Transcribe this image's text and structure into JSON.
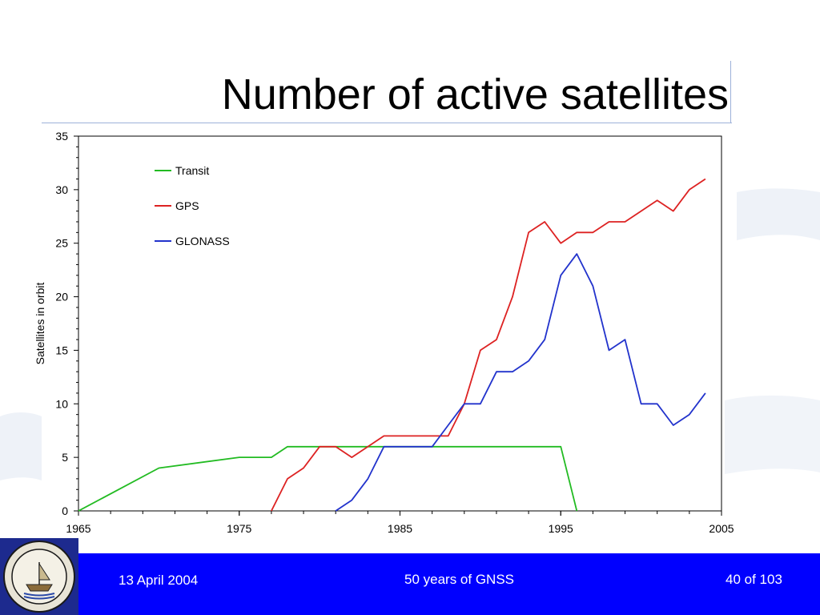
{
  "slide": {
    "title": "Number of active satellites"
  },
  "footer": {
    "date": "13 April 2004",
    "center": "50 years of GNSS",
    "page": "40 of 103"
  },
  "chart_data": {
    "type": "line",
    "title": "",
    "xlabel": "",
    "ylabel": "Satellites in orbit",
    "xlim": [
      1965,
      2005
    ],
    "ylim": [
      0,
      35
    ],
    "x_ticks": [
      1965,
      1975,
      1985,
      1995,
      2005
    ],
    "y_ticks": [
      0,
      5,
      10,
      15,
      20,
      25,
      30,
      35
    ],
    "grid": false,
    "legend_position": "top-left",
    "series": [
      {
        "name": "Transit",
        "color": "#22bb22",
        "points": [
          [
            1965,
            0
          ],
          [
            1970,
            4
          ],
          [
            1975,
            5
          ],
          [
            1977,
            5
          ],
          [
            1978,
            6
          ],
          [
            1995,
            6
          ],
          [
            1996,
            0
          ]
        ]
      },
      {
        "name": "GPS",
        "color": "#dd2222",
        "points": [
          [
            1977,
            0
          ],
          [
            1978,
            3
          ],
          [
            1979,
            4
          ],
          [
            1980,
            6
          ],
          [
            1981,
            6
          ],
          [
            1982,
            5
          ],
          [
            1983,
            6
          ],
          [
            1984,
            7
          ],
          [
            1988,
            7
          ],
          [
            1989,
            10
          ],
          [
            1990,
            15
          ],
          [
            1991,
            16
          ],
          [
            1992,
            20
          ],
          [
            1993,
            26
          ],
          [
            1994,
            27
          ],
          [
            1995,
            25
          ],
          [
            1996,
            26
          ],
          [
            1997,
            26
          ],
          [
            1998,
            27
          ],
          [
            1999,
            27
          ],
          [
            2000,
            28
          ],
          [
            2001,
            29
          ],
          [
            2002,
            28
          ],
          [
            2003,
            30
          ],
          [
            2004,
            31
          ]
        ]
      },
      {
        "name": "GLONASS",
        "color": "#2233cc",
        "points": [
          [
            1981,
            0
          ],
          [
            1982,
            1
          ],
          [
            1983,
            3
          ],
          [
            1984,
            6
          ],
          [
            1987,
            6
          ],
          [
            1988,
            8
          ],
          [
            1989,
            10
          ],
          [
            1990,
            10
          ],
          [
            1991,
            13
          ],
          [
            1992,
            13
          ],
          [
            1993,
            14
          ],
          [
            1994,
            16
          ],
          [
            1995,
            22
          ],
          [
            1996,
            24
          ],
          [
            1997,
            21
          ],
          [
            1998,
            15
          ],
          [
            1999,
            16
          ],
          [
            2000,
            10
          ],
          [
            2001,
            10
          ],
          [
            2002,
            8
          ],
          [
            2003,
            9
          ],
          [
            2004,
            11
          ]
        ]
      }
    ]
  },
  "colors": {
    "footer_bg": "#0000ff",
    "title_rule": "#9db1d9",
    "logo_bg": "#1d2a8e"
  },
  "icons": {
    "logo": "arab-institute-of-navigation-seal"
  }
}
